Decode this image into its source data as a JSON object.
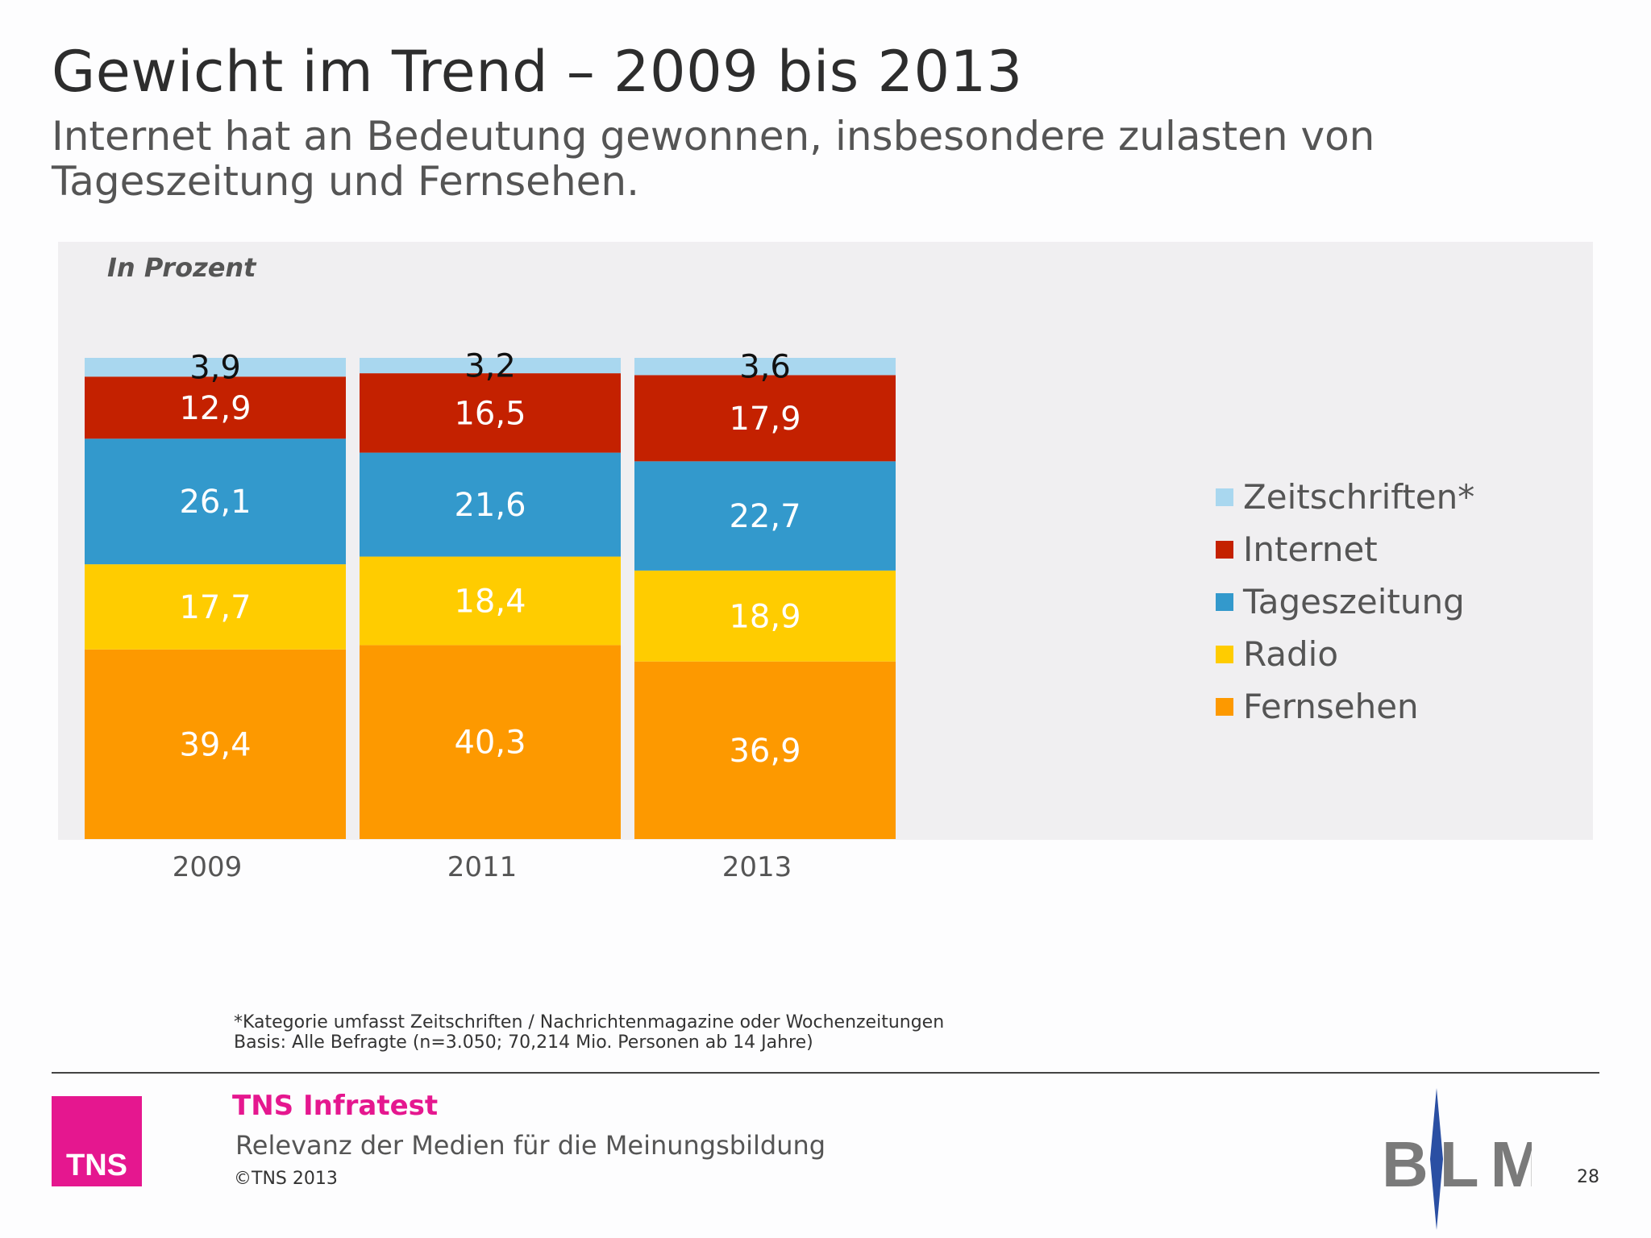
{
  "header": {
    "title": "Gewicht im Trend – 2009 bis 2013",
    "subtitle_line1": "Internet hat an Bedeutung gewonnen, insbesondere zulasten von",
    "subtitle_line2": "Tageszeitung und Fernsehen."
  },
  "chart_data": {
    "type": "bar",
    "stacked": true,
    "unit_label": "In Prozent",
    "categories": [
      "2009",
      "2011",
      "2013"
    ],
    "series": [
      {
        "name": "Fernsehen",
        "color": "#fd9900",
        "values": [
          39.4,
          40.3,
          36.9
        ],
        "labels": [
          "39,4",
          "40,3",
          "36,9"
        ],
        "label_color": "#ffffff"
      },
      {
        "name": "Radio",
        "color": "#ffcc00",
        "values": [
          17.7,
          18.4,
          18.9
        ],
        "labels": [
          "17,7",
          "18,4",
          "18,9"
        ],
        "label_color": "#ffffff"
      },
      {
        "name": "Tageszeitung",
        "color": "#3399cc",
        "values": [
          26.1,
          21.6,
          22.7
        ],
        "labels": [
          "26,1",
          "21,6",
          "22,7"
        ],
        "label_color": "#ffffff"
      },
      {
        "name": "Internet",
        "color": "#c42100",
        "values": [
          12.9,
          16.5,
          17.9
        ],
        "labels": [
          "12,9",
          "16,5",
          "17,9"
        ],
        "label_color": "#ffffff"
      },
      {
        "name": "Zeitschriften*",
        "color": "#a9d7ef",
        "values": [
          3.9,
          3.2,
          3.6
        ],
        "labels": [
          "3,9",
          "3,2",
          "3,6"
        ],
        "label_color": "#111111"
      }
    ],
    "legend_order": [
      "Zeitschriften*",
      "Internet",
      "Tageszeitung",
      "Radio",
      "Fernsehen"
    ],
    "legend_position": "right",
    "ylim": [
      0,
      100
    ],
    "grid": false
  },
  "footnotes": {
    "line1": "*Kategorie umfasst Zeitschriften / Nachrichtenmagazine oder Wochenzeitungen",
    "line2": "Basis: Alle Befragte (n=3.050; 70,214 Mio. Personen ab 14 Jahre)"
  },
  "footer": {
    "tns_logo_text": "TNS",
    "company": "TNS Infratest",
    "study": "Relevanz der Medien für die Meinungsbildung",
    "copyright": "©TNS 2013",
    "partner_logo_text": "BLM",
    "page_number": "28"
  }
}
